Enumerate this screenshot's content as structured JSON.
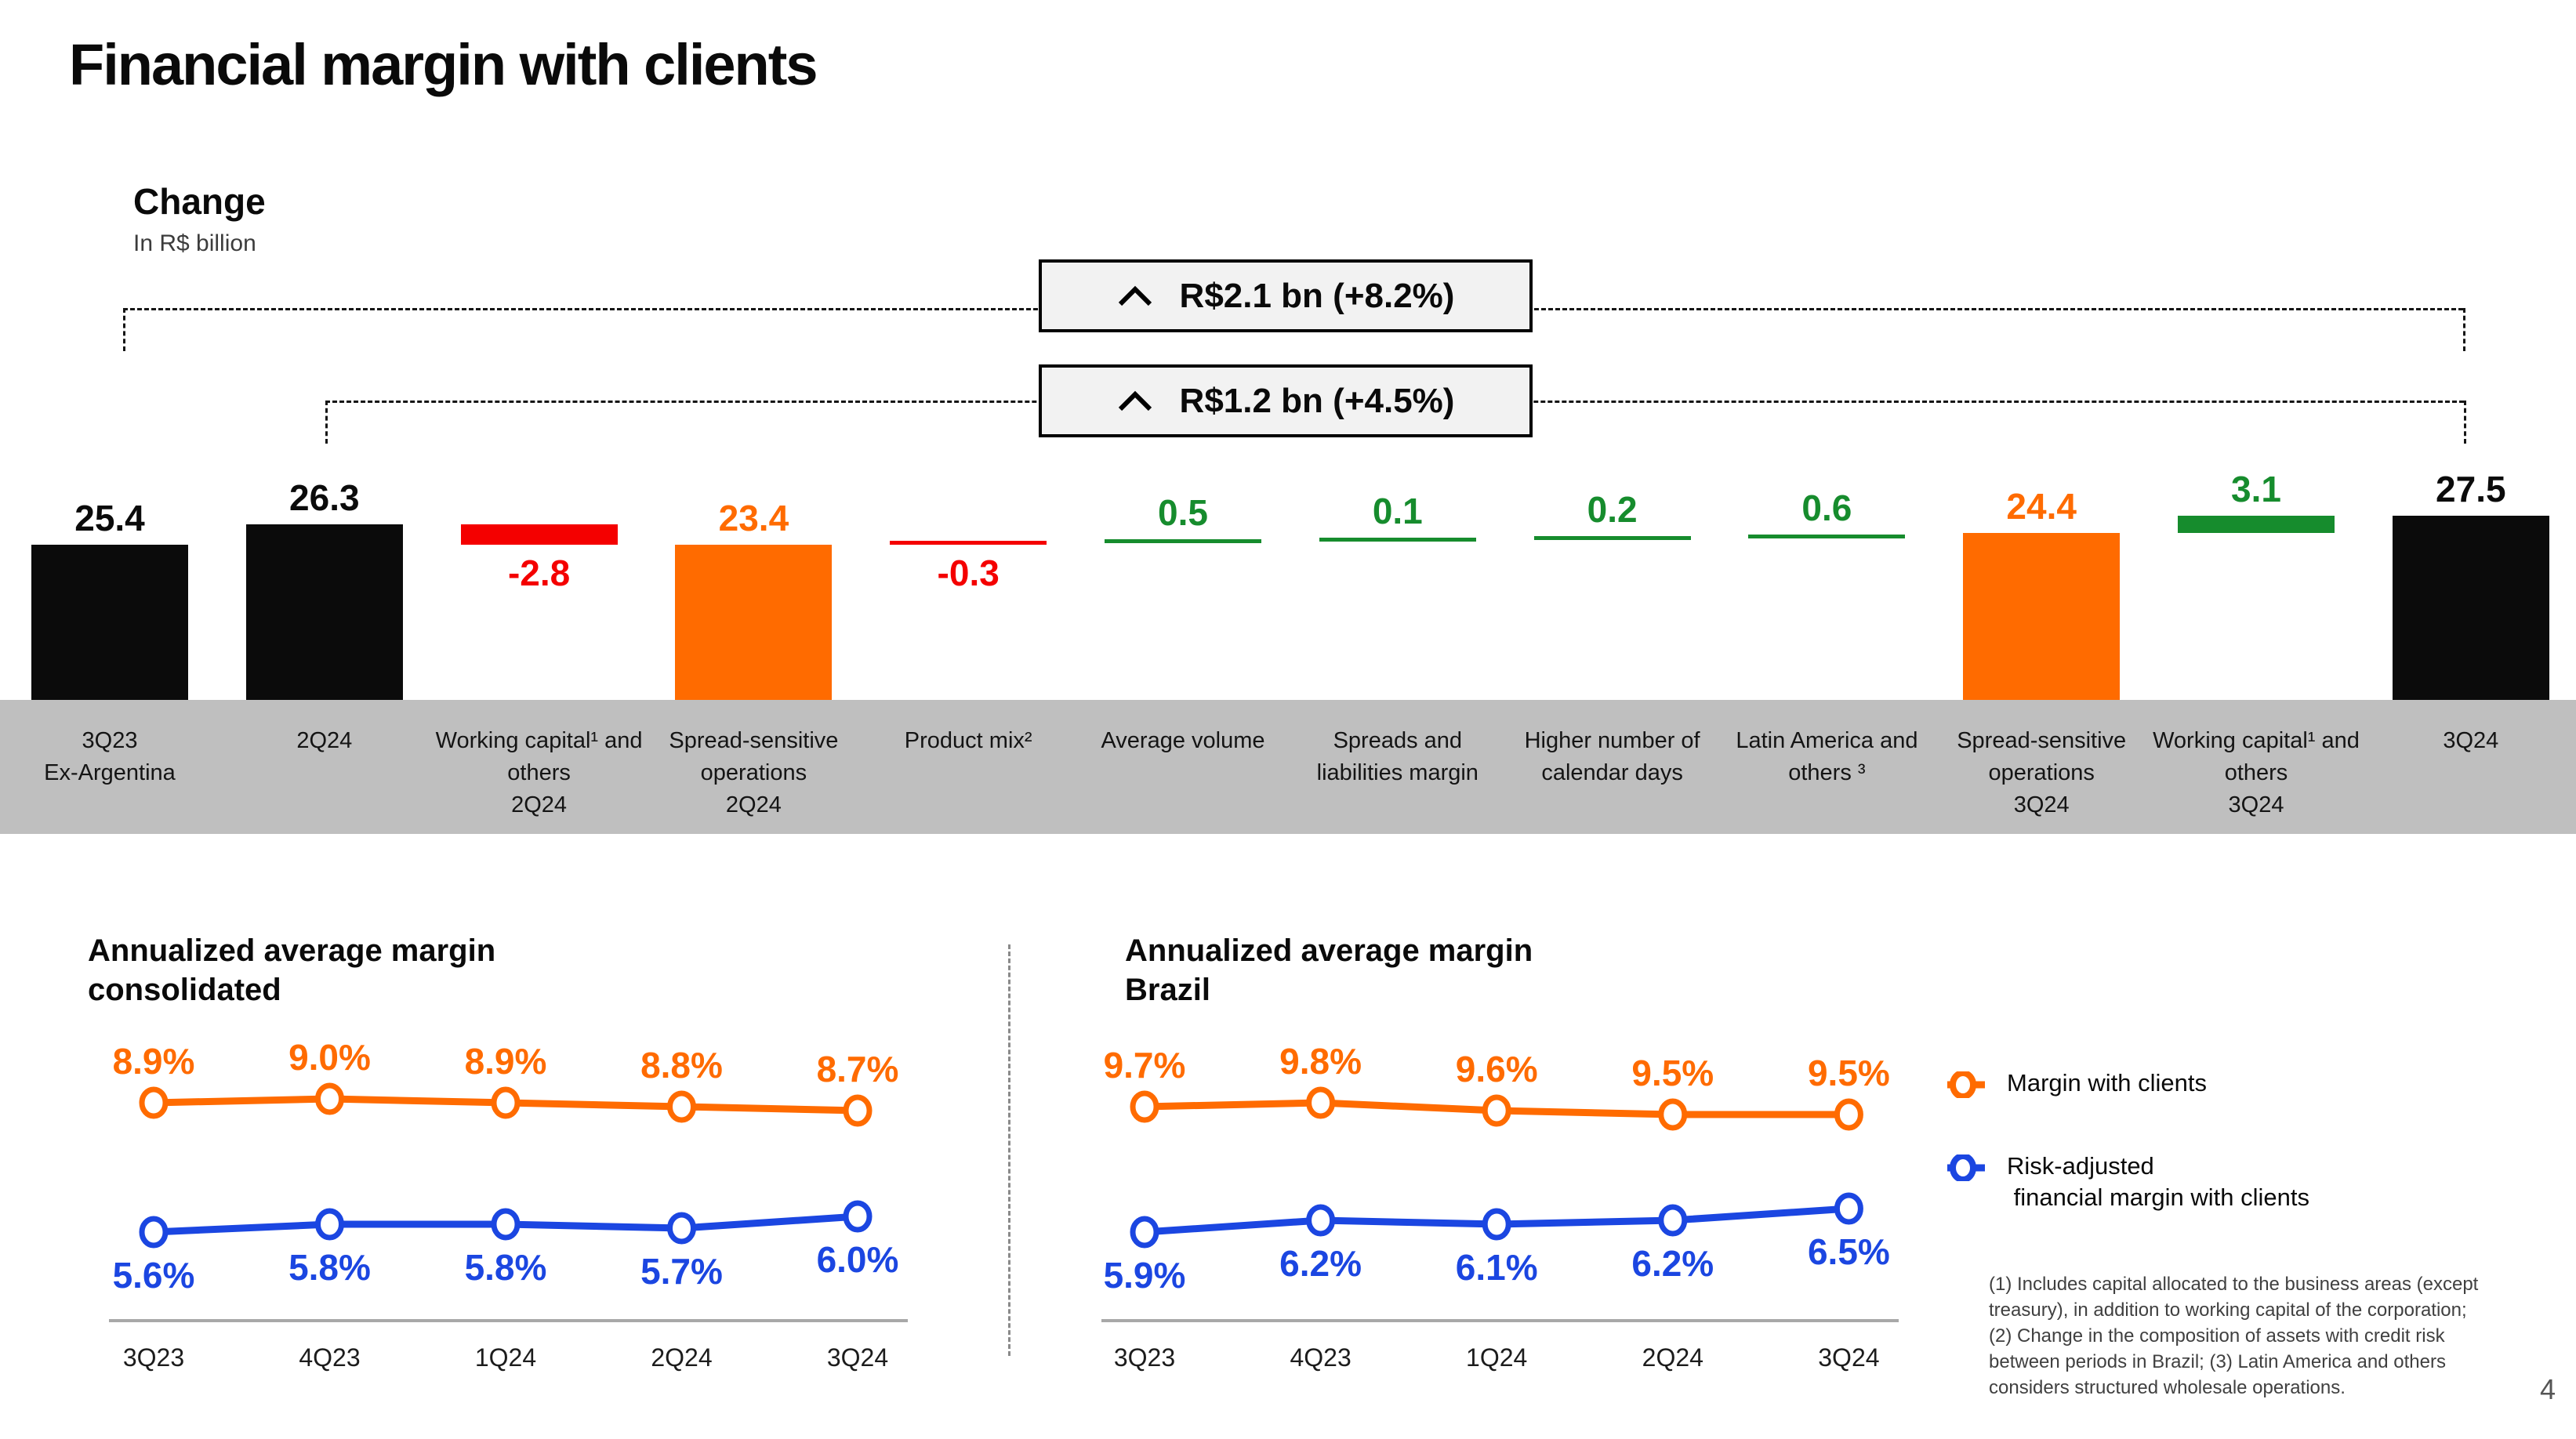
{
  "header": {
    "title": "Financial margin with clients",
    "page_number": "4"
  },
  "waterfall": {
    "heading": "Change",
    "subheading": "In R$ billion",
    "callouts": [
      {
        "icon": "chevron-up-icon",
        "text": "R$2.1 bn (+8.2%)"
      },
      {
        "icon": "chevron-up-icon",
        "text": "R$1.2 bn (+4.5%)"
      }
    ]
  },
  "chart_data": [
    {
      "type": "bar",
      "subtype": "waterfall",
      "title": "Change",
      "ylabel": "In R$ billion",
      "categories": [
        "3Q23\nEx-Argentina",
        "2Q24",
        "Working capital¹ and\nothers\n2Q24",
        "Spread-sensitive\noperations\n2Q24",
        "Product mix²",
        "Average volume",
        "Spreads and\nliabilities margin",
        "Higher number of\ncalendar days",
        "Latin America and\nothers ³",
        "Spread-sensitive\noperations\n3Q24",
        "Working capital¹ and\nothers\n3Q24",
        "3Q24"
      ],
      "values": [
        25.4,
        26.3,
        -2.8,
        23.4,
        -0.3,
        0.5,
        0.1,
        0.2,
        0.6,
        24.4,
        3.1,
        27.5
      ],
      "kinds": [
        "total",
        "total",
        "decrease",
        "component",
        "decrease",
        "increase",
        "increase",
        "increase",
        "increase",
        "component",
        "increase",
        "total"
      ],
      "colors": {
        "total": "#0b0b0b",
        "component": "#ff6b00",
        "decrease": "#f40000",
        "increase": "#168c2d"
      },
      "label_colors": {
        "total": "#0b0b0b",
        "component": "#ff6b00",
        "decrease": "#f40000",
        "increase": "#168c2d"
      }
    },
    {
      "type": "line",
      "title": "Annualized average margin\nconsolidated",
      "categories": [
        "3Q23",
        "4Q23",
        "1Q24",
        "2Q24",
        "3Q24"
      ],
      "series": [
        {
          "name": "Margin with clients",
          "color": "#ff6b00",
          "values": [
            8.9,
            9.0,
            8.9,
            8.8,
            8.7
          ]
        },
        {
          "name": "Risk-adjusted financial margin with clients",
          "color": "#1b46e1",
          "values": [
            5.6,
            5.8,
            5.8,
            5.7,
            6.0
          ]
        }
      ],
      "value_suffix": "%",
      "legend_position": "right",
      "grid": false
    },
    {
      "type": "line",
      "title": "Annualized average margin\nBrazil",
      "categories": [
        "3Q23",
        "4Q23",
        "1Q24",
        "2Q24",
        "3Q24"
      ],
      "series": [
        {
          "name": "Margin with clients",
          "color": "#ff6b00",
          "values": [
            9.7,
            9.8,
            9.6,
            9.5,
            9.5
          ]
        },
        {
          "name": "Risk-adjusted financial margin with clients",
          "color": "#1b46e1",
          "values": [
            5.9,
            6.2,
            6.1,
            6.2,
            6.5
          ]
        }
      ],
      "value_suffix": "%",
      "legend_position": "right",
      "grid": false
    }
  ],
  "legend": {
    "items": [
      {
        "color": "#ff6b00",
        "label": "Margin with clients"
      },
      {
        "color": "#1b46e1",
        "label": "Risk-adjusted\n financial margin with clients"
      }
    ]
  },
  "footnote": "(1) Includes capital allocated to the business areas (except\ntreasury), in addition to working capital of the corporation;\n(2) Change in the composition of assets with credit risk\nbetween periods in Brazil; (3) Latin America and others\nconsiders structured wholesale operations."
}
